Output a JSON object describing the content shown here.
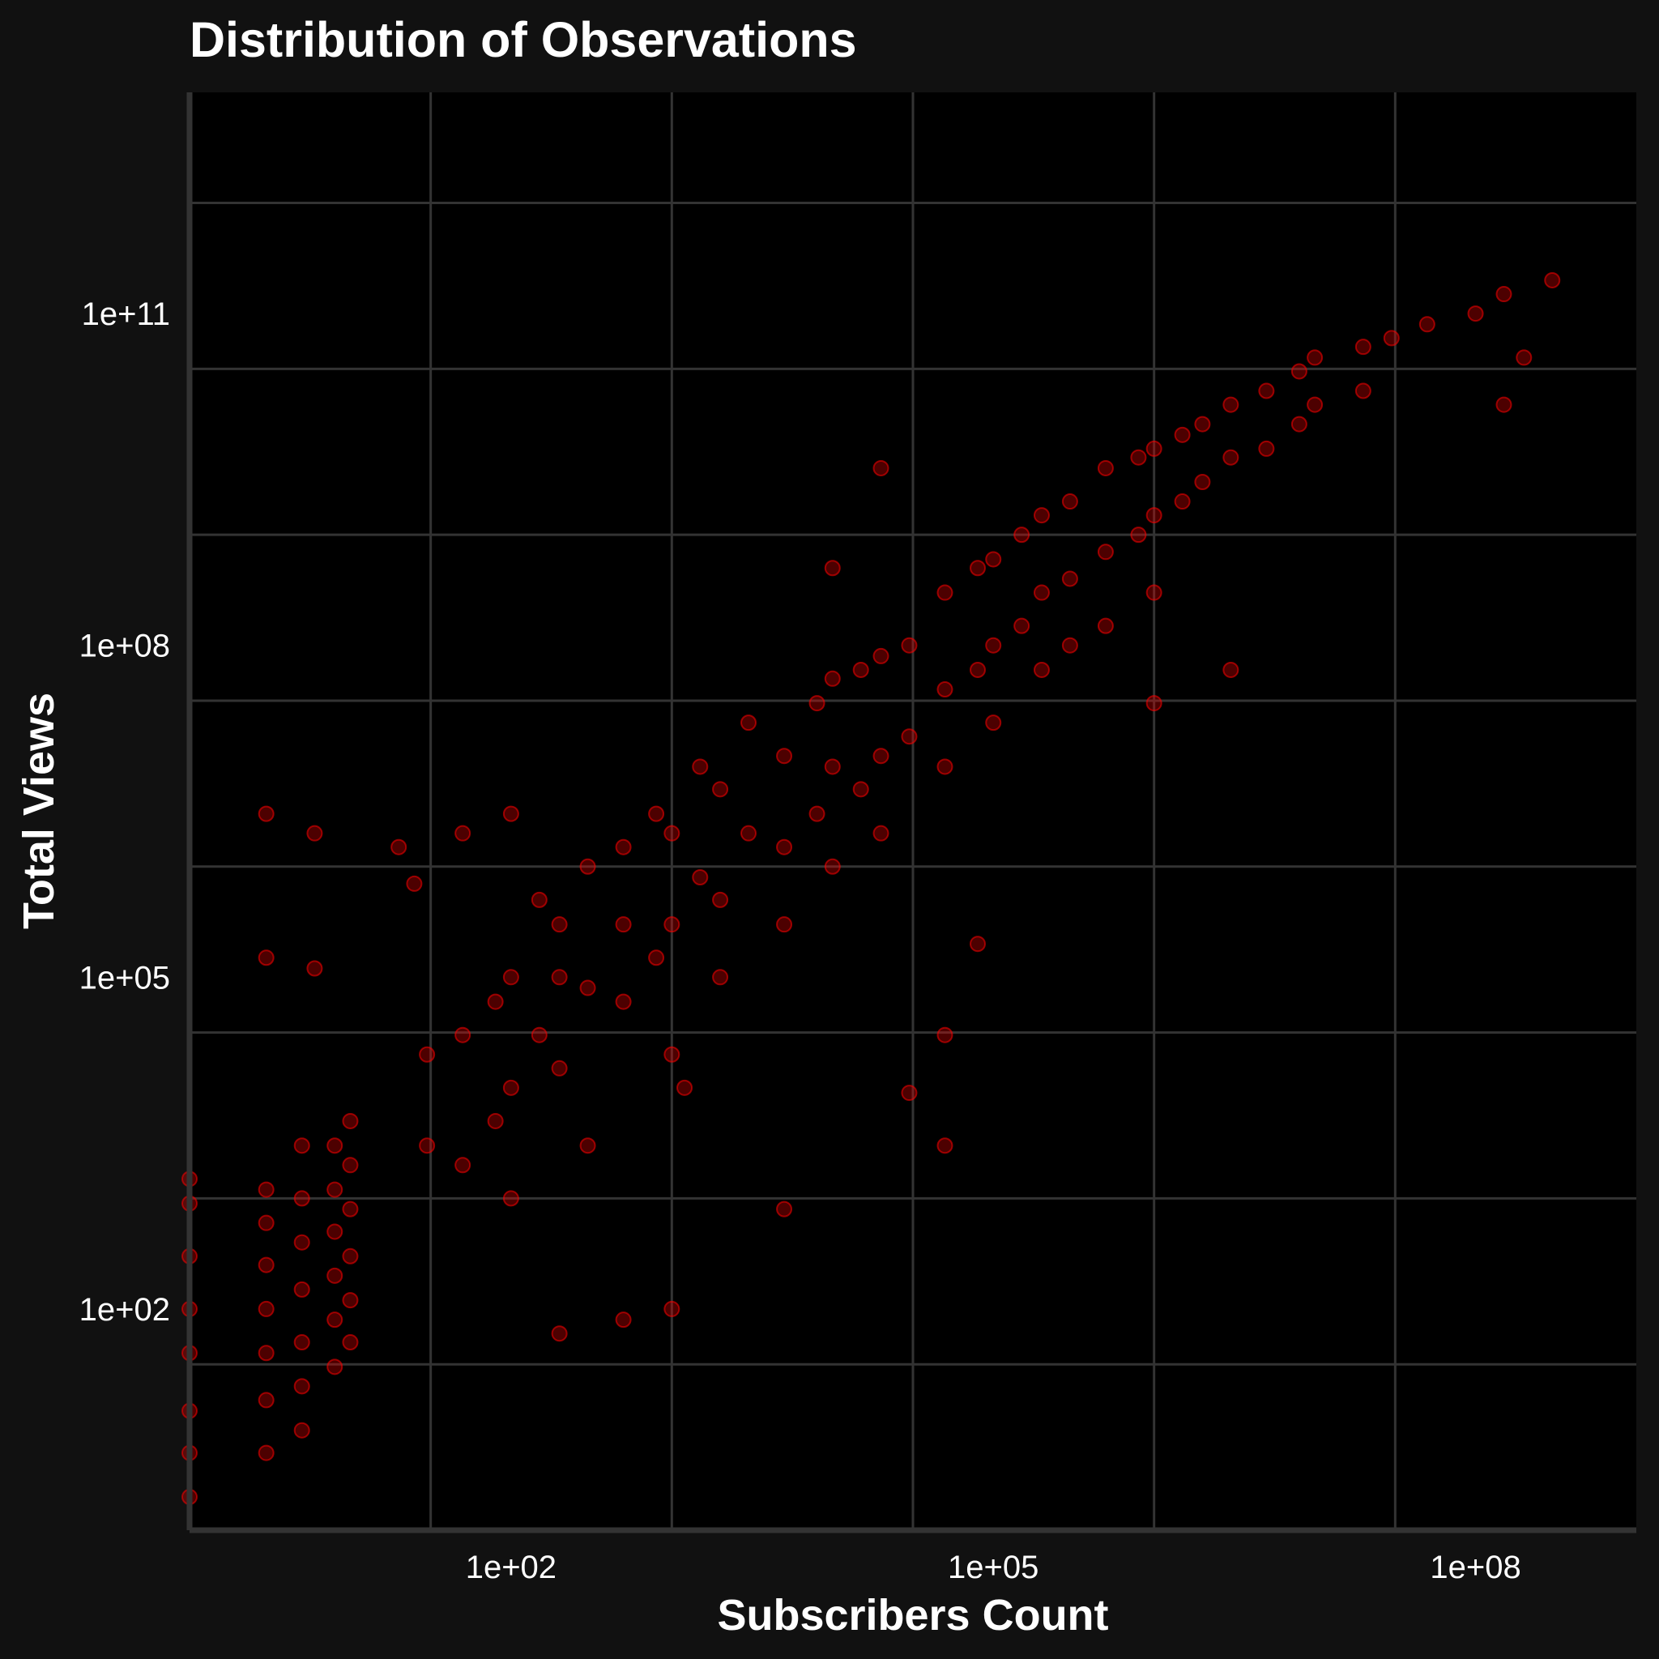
{
  "chart_data": {
    "type": "scatter",
    "title": "Distribution of Observations",
    "xlabel": "Subscribers Count",
    "ylabel": "Total Views",
    "x_scale": "log10",
    "y_scale": "log10",
    "xlim": [
      1,
      1000000000
    ],
    "ylim": [
      1,
      10000000000000
    ],
    "x_ticks": [
      {
        "value": 100,
        "label": "1e+02"
      },
      {
        "value": 100000,
        "label": "1e+05"
      },
      {
        "value": 100000000,
        "label": "1e+08"
      }
    ],
    "y_ticks": [
      {
        "value": 100,
        "label": "1e+02"
      },
      {
        "value": 100000,
        "label": "1e+05"
      },
      {
        "value": 100000000,
        "label": "1e+08"
      },
      {
        "value": 100000000000,
        "label": "1e+11"
      }
    ],
    "grid": true,
    "point_color": "#ff0000",
    "point_opacity": 0.3,
    "series": [
      {
        "points": [
          [
            1,
            1500
          ],
          [
            1,
            900
          ],
          [
            1,
            300
          ],
          [
            1,
            100
          ],
          [
            1,
            40
          ],
          [
            1,
            12
          ],
          [
            1,
            5
          ],
          [
            1,
            2
          ],
          [
            3,
            1200
          ],
          [
            3,
            600
          ],
          [
            3,
            250
          ],
          [
            3,
            100
          ],
          [
            3,
            40
          ],
          [
            3,
            15
          ],
          [
            3,
            5
          ],
          [
            5,
            3000
          ],
          [
            5,
            1000
          ],
          [
            5,
            400
          ],
          [
            5,
            150
          ],
          [
            5,
            50
          ],
          [
            5,
            20
          ],
          [
            5,
            8
          ],
          [
            8,
            3000
          ],
          [
            8,
            1200
          ],
          [
            8,
            500
          ],
          [
            8,
            200
          ],
          [
            8,
            80
          ],
          [
            8,
            30
          ],
          [
            10,
            5000
          ],
          [
            10,
            2000
          ],
          [
            10,
            800
          ],
          [
            10,
            300
          ],
          [
            10,
            120
          ],
          [
            10,
            50
          ],
          [
            3,
            3000000
          ],
          [
            6,
            2000000
          ],
          [
            3,
            150000
          ],
          [
            6,
            120000
          ],
          [
            30,
            20000
          ],
          [
            30,
            3000
          ],
          [
            50,
            30000
          ],
          [
            50,
            2000
          ],
          [
            80,
            60000
          ],
          [
            80,
            5000
          ],
          [
            100,
            100000
          ],
          [
            100,
            10000
          ],
          [
            100,
            1000
          ],
          [
            150,
            500000
          ],
          [
            150,
            30000
          ],
          [
            200,
            300000
          ],
          [
            200,
            15000
          ],
          [
            300,
            1000000
          ],
          [
            300,
            80000
          ],
          [
            300,
            3000
          ],
          [
            500,
            1500000
          ],
          [
            500,
            300000
          ],
          [
            500,
            60000
          ],
          [
            800,
            3000000
          ],
          [
            800,
            150000
          ],
          [
            1000,
            2000000
          ],
          [
            1000,
            300000
          ],
          [
            1000,
            20000
          ],
          [
            1500,
            8000000
          ],
          [
            1500,
            800000
          ],
          [
            2000,
            5000000
          ],
          [
            2000,
            500000
          ],
          [
            2000,
            100000
          ],
          [
            3000,
            20000000
          ],
          [
            3000,
            2000000
          ],
          [
            5000,
            10000000
          ],
          [
            5000,
            1500000
          ],
          [
            5000,
            300000
          ],
          [
            8000,
            30000000
          ],
          [
            8000,
            3000000
          ],
          [
            10000,
            50000000
          ],
          [
            10000,
            8000000
          ],
          [
            10000,
            1000000
          ],
          [
            15000,
            60000000
          ],
          [
            15000,
            5000000
          ],
          [
            20000,
            80000000
          ],
          [
            20000,
            10000000
          ],
          [
            20000,
            2000000
          ],
          [
            30000,
            100000000
          ],
          [
            30000,
            15000000
          ],
          [
            50000,
            300000000
          ],
          [
            50000,
            40000000
          ],
          [
            50000,
            8000000
          ],
          [
            80000,
            500000000
          ],
          [
            80000,
            60000000
          ],
          [
            100000,
            600000000
          ],
          [
            100000,
            100000000
          ],
          [
            100000,
            20000000
          ],
          [
            150000,
            1000000000
          ],
          [
            150000,
            150000000
          ],
          [
            200000,
            1500000000
          ],
          [
            200000,
            300000000
          ],
          [
            200000,
            60000000
          ],
          [
            300000,
            2000000000
          ],
          [
            300000,
            400000000
          ],
          [
            500000,
            4000000000
          ],
          [
            500000,
            700000000
          ],
          [
            500000,
            150000000
          ],
          [
            800000,
            5000000000
          ],
          [
            800000,
            1000000000
          ],
          [
            1000000,
            6000000000
          ],
          [
            1000000,
            1500000000
          ],
          [
            1000000,
            300000000
          ],
          [
            1500000,
            8000000000
          ],
          [
            1500000,
            2000000000
          ],
          [
            2000000,
            10000000000
          ],
          [
            2000000,
            3000000000
          ],
          [
            3000000,
            15000000000
          ],
          [
            3000000,
            5000000000
          ],
          [
            5000000,
            20000000000
          ],
          [
            5000000,
            6000000000
          ],
          [
            8000000,
            30000000000
          ],
          [
            8000000,
            10000000000
          ],
          [
            10000000,
            40000000000
          ],
          [
            10000000,
            15000000000
          ],
          [
            20000000,
            50000000000
          ],
          [
            20000000,
            20000000000
          ],
          [
            30000000,
            60000000000
          ],
          [
            50000000,
            80000000000
          ],
          [
            100000000,
            100000000000
          ],
          [
            150000000,
            150000000000
          ],
          [
            300000000,
            200000000000
          ],
          [
            200000000,
            40000000000
          ],
          [
            150000000,
            15000000000
          ],
          [
            20000,
            4000000000
          ],
          [
            10000,
            500000000
          ],
          [
            200,
            100000
          ],
          [
            1200,
            10000
          ],
          [
            50000,
            30000
          ],
          [
            30000,
            9000
          ],
          [
            5000,
            800
          ],
          [
            1000,
            100
          ],
          [
            500,
            80
          ],
          [
            200,
            60
          ],
          [
            100,
            3000000
          ],
          [
            50,
            2000000
          ],
          [
            25,
            700000
          ],
          [
            20,
            1500000
          ],
          [
            80000,
            200000
          ],
          [
            50000,
            3000
          ],
          [
            300000,
            100000000
          ],
          [
            1000000,
            30000000
          ],
          [
            3000000,
            60000000
          ]
        ]
      }
    ]
  }
}
